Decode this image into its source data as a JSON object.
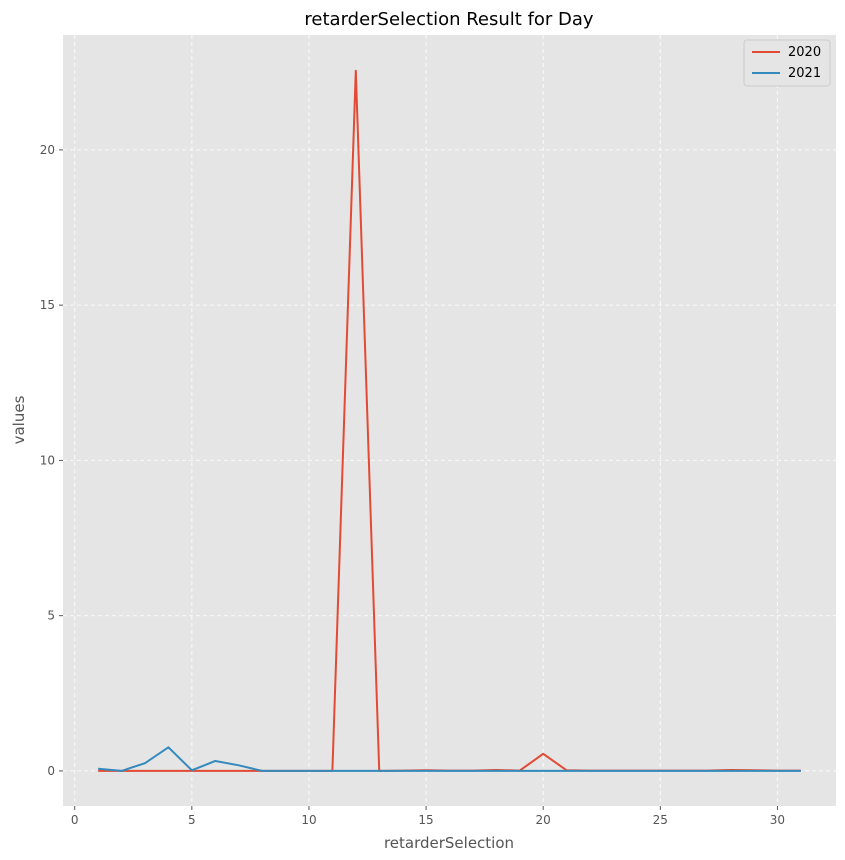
{
  "chart_data": {
    "type": "line",
    "title": "retarderSelection Result for Day",
    "xlabel": "retarderSelection",
    "ylabel": "values",
    "xlim": [
      -0.5,
      32.5
    ],
    "ylim": [
      -1.13,
      23.7
    ],
    "xticks": [
      0,
      5,
      10,
      15,
      20,
      25,
      30
    ],
    "yticks": [
      0,
      5,
      10,
      15,
      20
    ],
    "grid": true,
    "legend_position": "top-right",
    "x": [
      1,
      2,
      3,
      4,
      5,
      6,
      7,
      8,
      9,
      10,
      11,
      12,
      13,
      14,
      15,
      16,
      17,
      18,
      19,
      20,
      21,
      22,
      23,
      24,
      25,
      26,
      27,
      28,
      29,
      30,
      31
    ],
    "series": [
      {
        "name": "2020",
        "color": "#E24A33",
        "values": [
          0.0,
          0.0,
          0.0,
          0.0,
          0.0,
          0.0,
          0.0,
          0.0,
          0.0,
          0.0,
          0.0,
          22.55,
          0.0,
          0.01,
          0.02,
          0.01,
          0.01,
          0.03,
          0.01,
          0.55,
          0.02,
          0.01,
          0.01,
          0.01,
          0.01,
          0.01,
          0.01,
          0.03,
          0.02,
          0.01,
          0.01
        ]
      },
      {
        "name": "2021",
        "color": "#348ABD",
        "values": [
          0.07,
          0.0,
          0.25,
          0.76,
          0.02,
          0.32,
          0.18,
          0.0,
          0.0,
          0.0,
          0.0,
          0.0,
          0.0,
          0.0,
          0.0,
          0.0,
          0.0,
          0.0,
          0.0,
          0.0,
          0.0,
          0.0,
          0.0,
          0.0,
          0.0,
          0.0,
          0.0,
          0.0,
          0.0,
          0.0,
          0.0
        ]
      }
    ]
  },
  "colors": {
    "plot_background": "#E5E5E5",
    "grid": "#FFFFFF",
    "axis_text": "#555555"
  }
}
